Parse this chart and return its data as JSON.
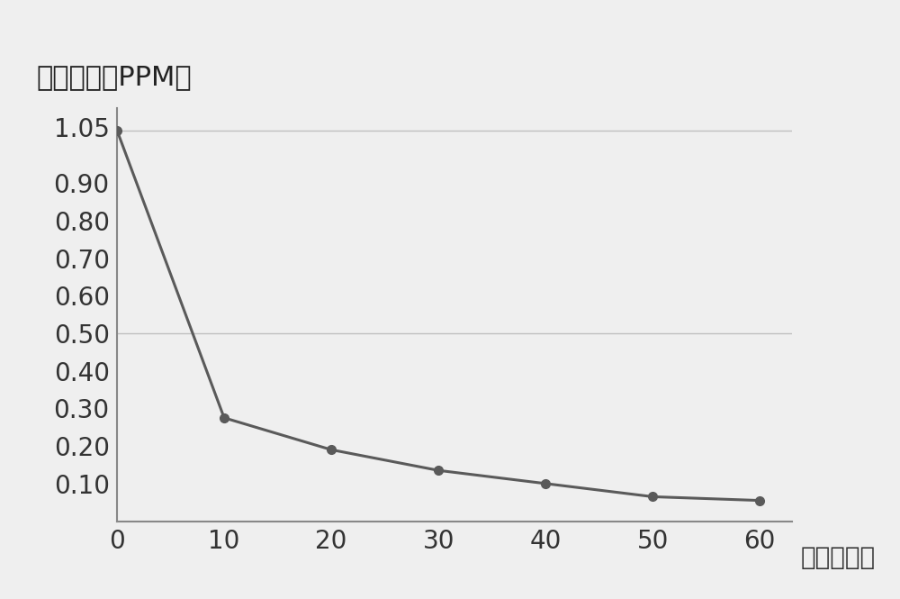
{
  "x": [
    0,
    10,
    20,
    30,
    40,
    50,
    60
  ],
  "y": [
    1.04,
    0.275,
    0.19,
    0.135,
    0.1,
    0.065,
    0.055
  ],
  "xlabel": "时间（分）",
  "ylabel": "甲醇浓度（PPM）",
  "xlim": [
    0,
    63
  ],
  "ylim": [
    0,
    1.1
  ],
  "ytick_positions": [
    0.1,
    0.2,
    0.3,
    0.4,
    0.5,
    0.6,
    0.7,
    0.8,
    0.9,
    1.05
  ],
  "ytick_labels": [
    "0.10",
    "0.20",
    "0.30",
    "0.40",
    "0.50",
    "0.60",
    "0.70",
    "0.80",
    "0.90",
    "1.05"
  ],
  "xtick_positions": [
    0,
    10,
    20,
    30,
    40,
    50,
    60
  ],
  "xtick_labels": [
    "0",
    "10",
    "20",
    "30",
    "40",
    "50",
    "60"
  ],
  "line_color": "#5a5a5a",
  "marker_color": "#5a5a5a",
  "grid_color": "#c0c0c0",
  "grid_vals": [
    0.5,
    1.04
  ],
  "background_color": "#efefef",
  "ylabel_fontsize": 22,
  "xlabel_fontsize": 20,
  "tick_fontsize": 20
}
